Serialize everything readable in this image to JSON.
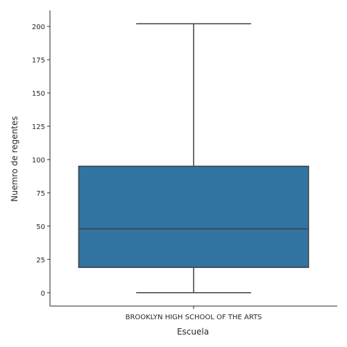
{
  "chart_data": {
    "type": "box",
    "xlabel": "Escuela",
    "ylabel": "Nuemro de regentes",
    "categories": [
      "BROOKLYN HIGH SCHOOL OF THE ARTS"
    ],
    "boxes": [
      {
        "category": "BROOKLYN HIGH SCHOOL OF THE ARTS",
        "whisker_low": 0,
        "q1": 19,
        "median": 48,
        "q3": 95,
        "whisker_high": 202
      }
    ],
    "ylim": [
      -10,
      212
    ],
    "yticks": [
      0,
      25,
      50,
      75,
      100,
      125,
      150,
      175,
      200
    ],
    "grid": false,
    "box_color": "#3274a1",
    "line_color": "#3f3f3f"
  }
}
